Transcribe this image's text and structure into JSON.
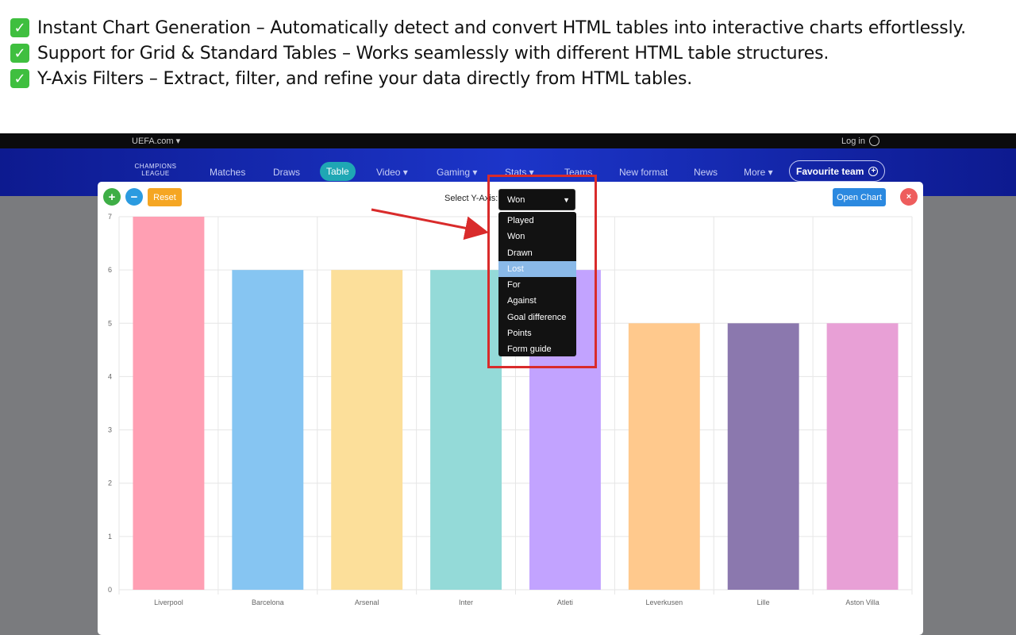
{
  "features": [
    {
      "check": "✓",
      "text": "Instant Chart Generation – Automatically detect and convert HTML tables into interactive charts effortlessly."
    },
    {
      "check": "✓",
      "text": "Support for Grid & Standard Tables – Works seamlessly with different HTML table structures."
    },
    {
      "check": "✓",
      "text": "Y-Axis Filters – Extract, filter, and refine your data directly from HTML tables."
    }
  ],
  "site": {
    "brand": "UEFA.com ▾",
    "login": "Log in",
    "logo_text": "CHAMPIONS LEAGUE",
    "nav": [
      "Matches",
      "Draws",
      "Table",
      "Video ▾",
      "Gaming ▾",
      "Stats ▾",
      "Teams",
      "New format",
      "News",
      "More ▾"
    ],
    "favourite": "Favourite team"
  },
  "panel": {
    "zoom_in": "+",
    "zoom_out": "−",
    "reset": "Reset",
    "select_label": "Select Y-Axis:",
    "selected": "Won",
    "options": [
      "Played",
      "Won",
      "Drawn",
      "Lost",
      "For",
      "Against",
      "Goal difference",
      "Points",
      "Form guide"
    ],
    "highlighted_option": "Lost",
    "open_chart": "Open Chart",
    "close": "×"
  },
  "chart_data": {
    "type": "bar",
    "categories": [
      "Liverpool",
      "Barcelona",
      "Arsenal",
      "Inter",
      "Atleti",
      "Leverkusen",
      "Lille",
      "Aston Villa"
    ],
    "values": [
      7,
      6,
      6,
      6,
      6,
      5,
      5,
      5
    ],
    "colors": [
      "#ff9fb3",
      "#86c5f2",
      "#fcdf9a",
      "#94dad8",
      "#c2a3ff",
      "#ffc98d",
      "#8b78ae",
      "#e8a0d6"
    ],
    "ylim": [
      0,
      7
    ],
    "yticks": [
      "0",
      "1",
      "2",
      "3",
      "4",
      "5",
      "6",
      "7"
    ],
    "grid": true
  },
  "colors": {
    "annotation": "#d92b2b"
  }
}
